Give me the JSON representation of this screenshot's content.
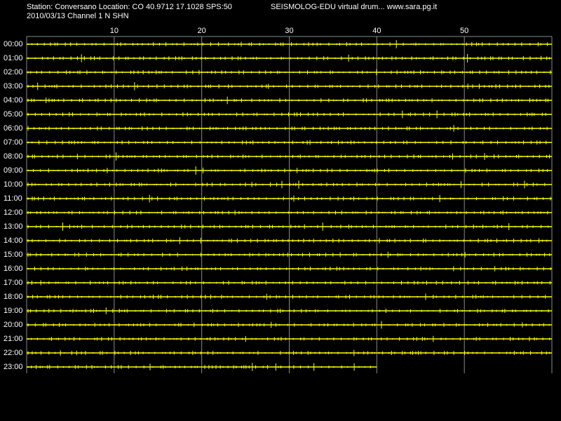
{
  "chart_data": {
    "type": "helicorder",
    "title": "Station: Conversano Location: CO 40.9712 17.1028 SPS:50",
    "subtitle": "2010/03/13  Channel 1 N SHN",
    "header_right": "SEISMOLOG-EDU virtual drum... www.sara.pg.it",
    "categories": [
      "00:00",
      "01:00",
      "02:00",
      "03:00",
      "04:00",
      "05:00",
      "06:00",
      "07:00",
      "08:00",
      "09:00",
      "10:00",
      "11:00",
      "12:00",
      "13:00",
      "14:00",
      "15:00",
      "16:00",
      "17:00",
      "18:00",
      "19:00",
      "20:00",
      "21:00",
      "22:00",
      "23:00"
    ],
    "values": [
      60,
      60,
      60,
      60,
      60,
      60,
      60,
      60,
      60,
      60,
      60,
      60,
      60,
      60,
      60,
      60,
      60,
      60,
      60,
      60,
      60,
      60,
      60,
      40
    ],
    "color": "#ffff00",
    "xlim": [
      0,
      60
    ],
    "xticks": [
      10,
      20,
      30,
      40,
      50
    ],
    "grid": true
  }
}
